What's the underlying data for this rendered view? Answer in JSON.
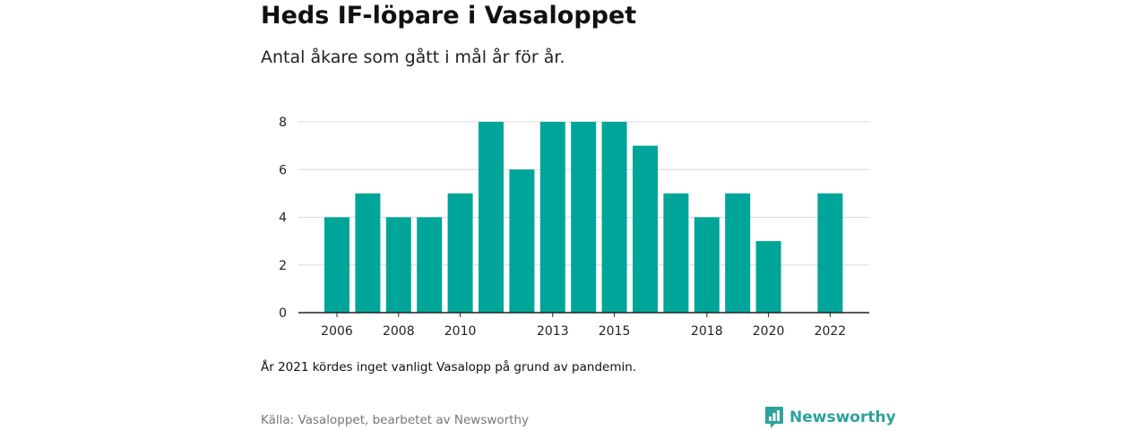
{
  "header": {
    "title": "Heds IF-löpare i Vasaloppet",
    "subtitle": "Antal åkare som gått i mål år för år."
  },
  "footer": {
    "note": "År 2021 kördes inget vanligt Vasalopp på grund av pandemin.",
    "source": "Källa: Vasaloppet, bearbetet av Newsworthy",
    "brand": "Newsworthy",
    "brand_icon": "newsworthy-logo-icon"
  },
  "colors": {
    "bar": "#00a59a",
    "grid": "#d9d9d9",
    "axis": "#222222",
    "brand": "#2aa39a"
  },
  "chart_data": {
    "type": "bar",
    "categories": [
      2006,
      2007,
      2008,
      2009,
      2010,
      2011,
      2012,
      2013,
      2014,
      2015,
      2016,
      2017,
      2018,
      2019,
      2020,
      2021,
      2022
    ],
    "values": [
      4,
      5,
      4,
      4,
      5,
      8,
      6,
      8,
      8,
      8,
      7,
      5,
      4,
      5,
      3,
      null,
      5
    ],
    "x_tick_labels": [
      "2006",
      "2008",
      "2010",
      "2013",
      "2015",
      "2018",
      "2020",
      "2022"
    ],
    "y_ticks": [
      0,
      2,
      4,
      6,
      8
    ],
    "ylim": [
      0,
      8
    ],
    "title": "Heds IF-löpare i Vasaloppet",
    "xlabel": "",
    "ylabel": "",
    "grid": true
  }
}
